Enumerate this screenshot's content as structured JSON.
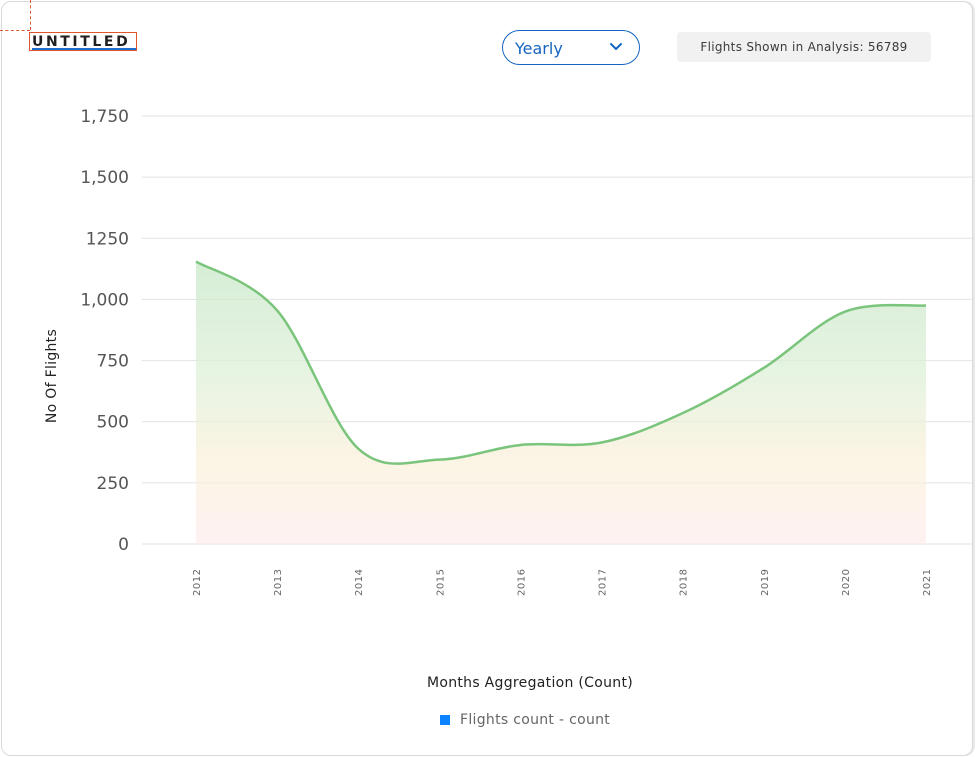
{
  "header": {
    "title": "UNTITLED",
    "period_dropdown": {
      "selected": "Yearly"
    },
    "flights_shown": "Flights Shown in Analysis: 56789"
  },
  "colors": {
    "line": "#7ac47c",
    "accent": "#1565c0",
    "legend_swatch": "#0a84ff"
  },
  "chart_data": {
    "type": "area",
    "xlabel": "Months Aggregation (Count)",
    "ylabel": "No Of Flights",
    "y_tick_labels": [
      "0",
      "250",
      "500",
      "750",
      "1,000",
      "1250",
      "1,500",
      "1,750"
    ],
    "ylim": [
      0,
      1750
    ],
    "grid": true,
    "legend_position": "bottom",
    "categories": [
      "2012",
      "2013",
      "2014",
      "2015",
      "2016",
      "2017",
      "2018",
      "2019",
      "2020",
      "2021"
    ],
    "series": [
      {
        "name": "Flights count - count",
        "values": [
          1155,
          955,
          390,
          345,
          405,
          415,
          535,
          720,
          950,
          975
        ]
      }
    ]
  }
}
